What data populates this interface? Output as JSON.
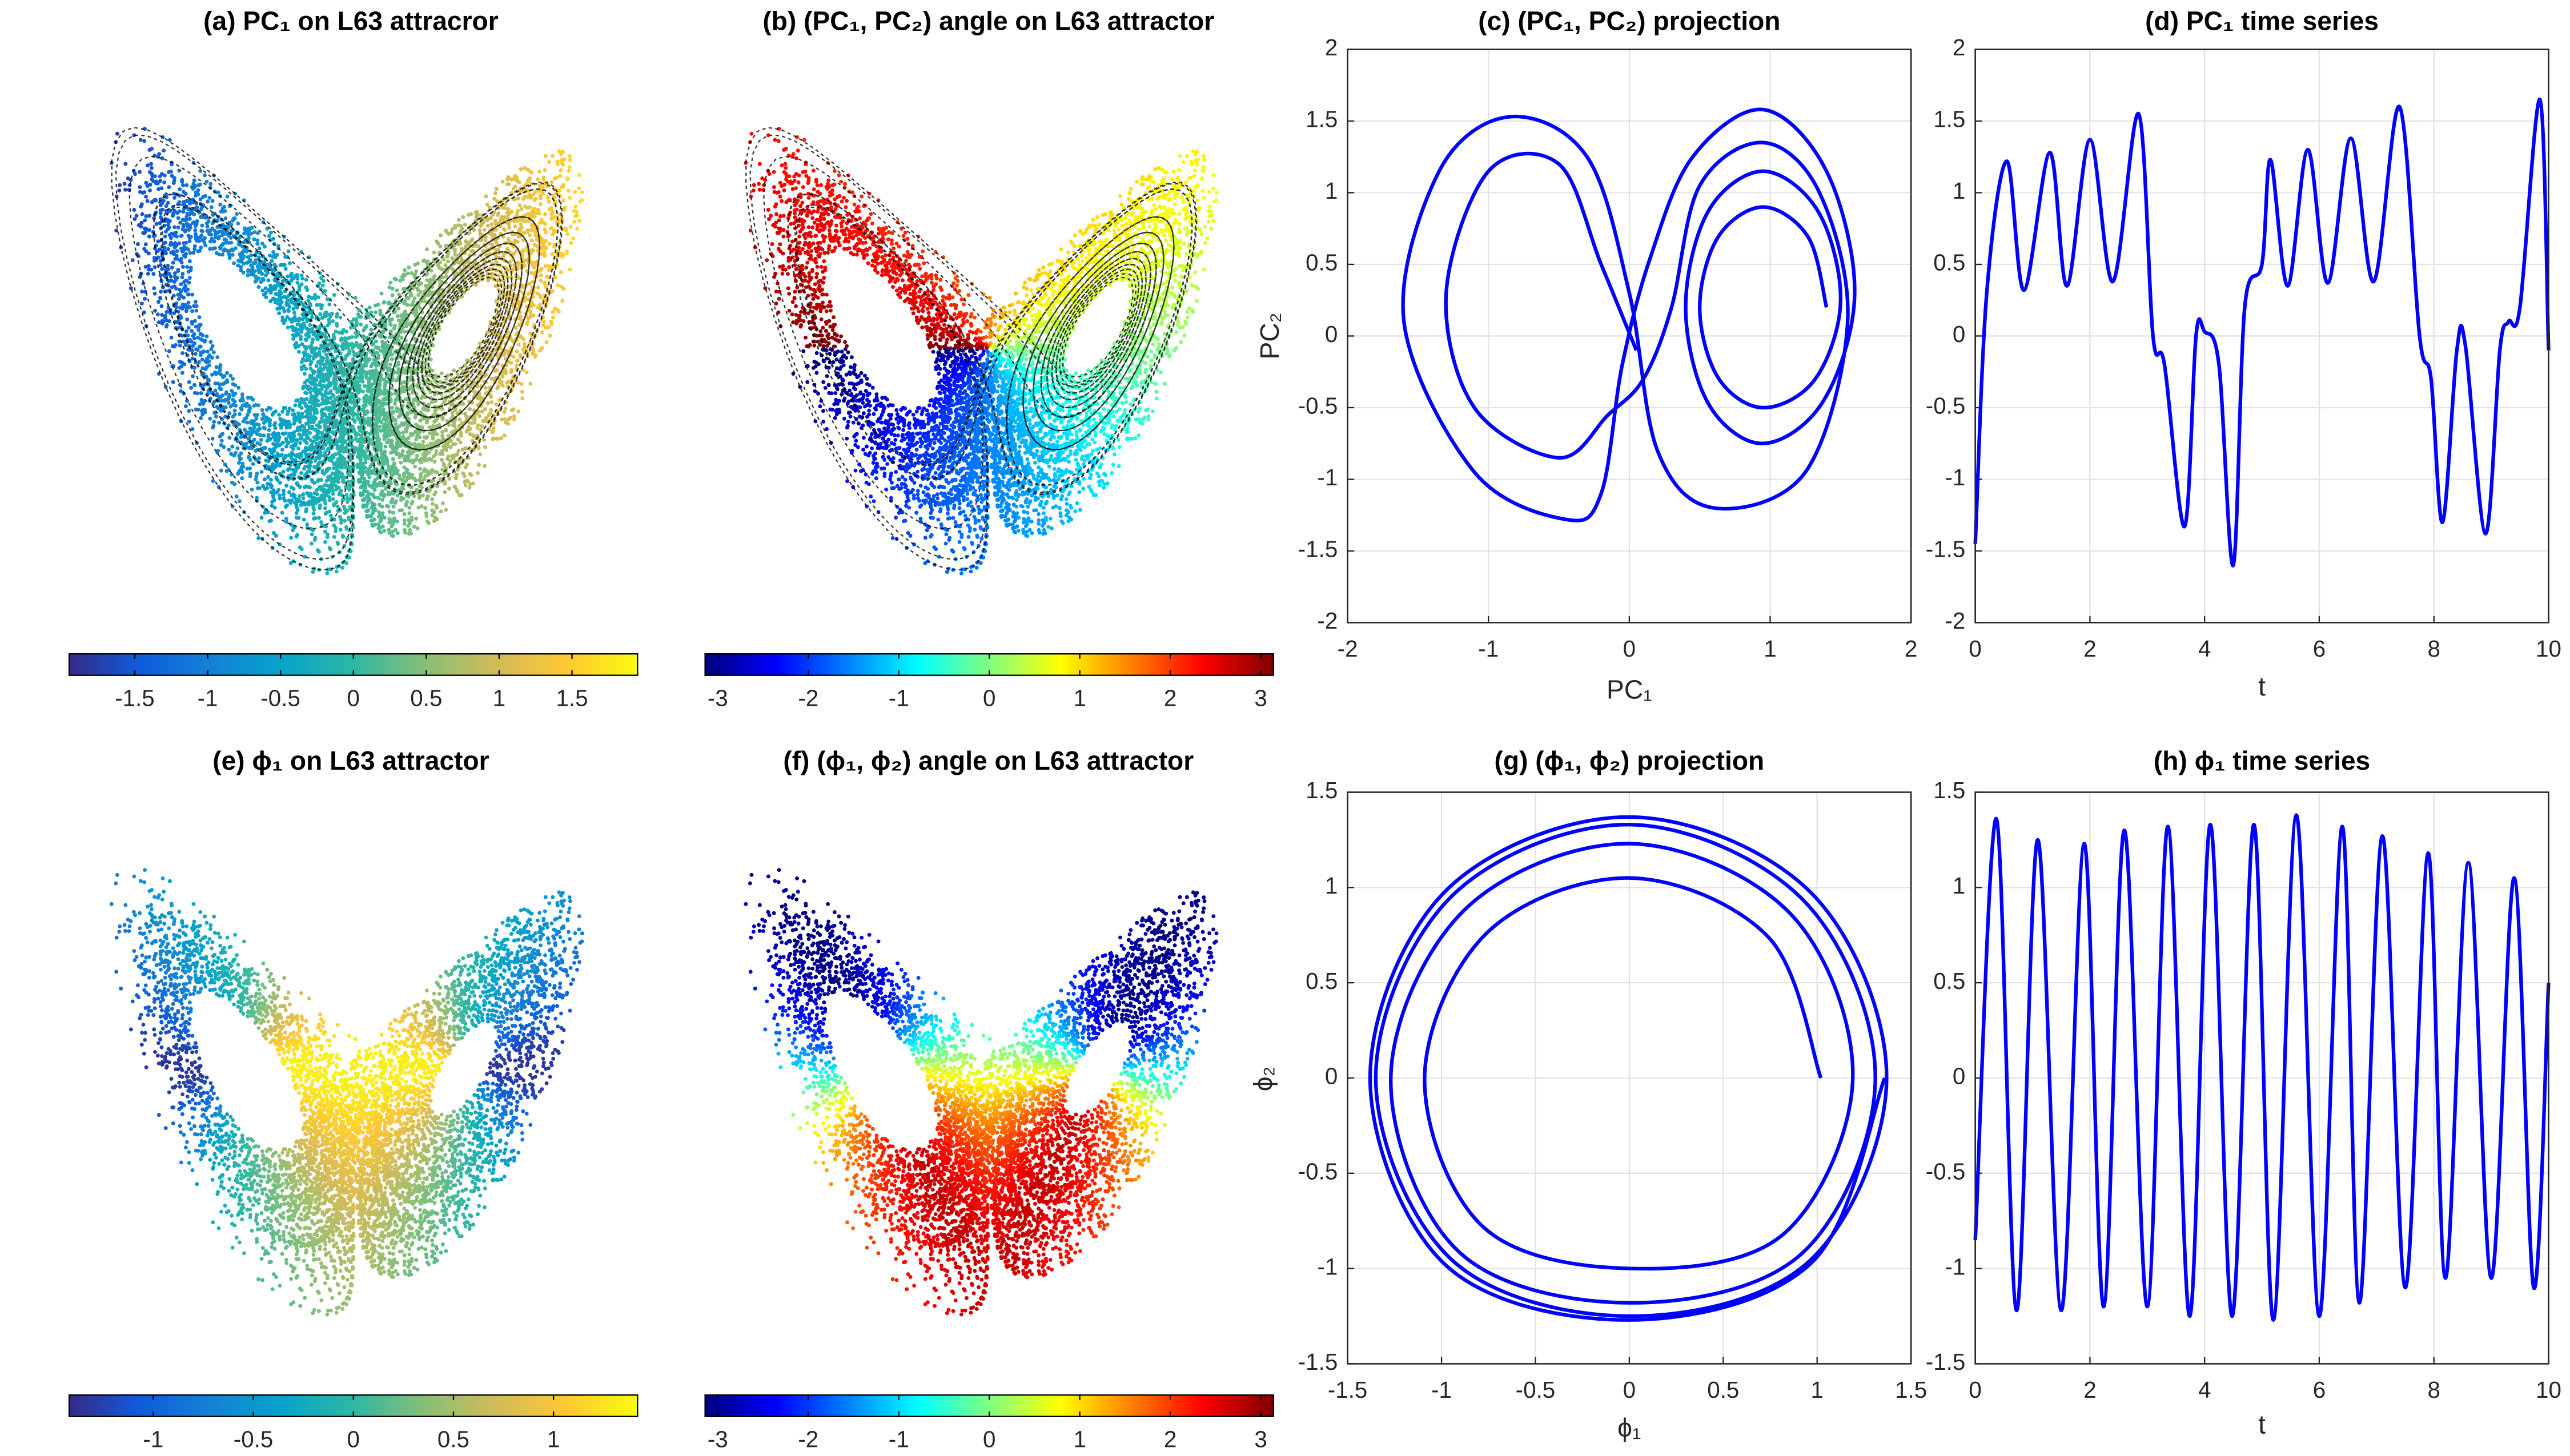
{
  "chart_data": [
    {
      "type": "attractor",
      "title": "(a) PC₁ on L63 attracror",
      "colormap": "parula",
      "clim": [
        -1.95,
        1.95
      ],
      "cticks": [
        -1.5,
        -1,
        -0.5,
        0,
        0.5,
        1,
        1.5
      ]
    },
    {
      "type": "attractor",
      "title": "(b) (PC₁, PC₂) angle on L63 attractor",
      "colormap": "jet",
      "clim": [
        -3.14,
        3.14
      ],
      "cticks": [
        -3,
        -2,
        -1,
        0,
        1,
        2,
        3
      ]
    },
    {
      "type": "line",
      "title": "(c) (PC₁, PC₂) projection",
      "xlabel": "PC₁",
      "ylabel": "PC₂",
      "grid": true,
      "x": [
        1.4,
        1.27,
        0.95,
        0.63,
        0.5,
        0.63,
        0.95,
        1.32,
        1.5,
        1.34,
        0.95,
        0.56,
        0.4,
        0.56,
        0.95,
        1.38,
        1.6,
        1.4,
        0.95,
        0.45,
        0.15,
        -0.05,
        -0.2,
        -0.45,
        -1.1,
        -1.6,
        -1.35,
        -0.85,
        -0.3,
        0.0,
        0.2,
        0.6,
        1.25,
        1.55,
        1.35,
        0.95,
        0.5,
        0.3,
        0.1,
        -0.15,
        -0.5,
        -1.1,
        -1.3,
        -1.0,
        -0.5,
        -0.2,
        0.05
      ],
      "series": [
        {
          "color": "#0000ff",
          "values": [
            0.2,
            0.69,
            0.9,
            0.69,
            0.2,
            -0.29,
            -0.5,
            -0.3,
            0.25,
            0.87,
            1.15,
            0.87,
            0.2,
            -0.47,
            -0.75,
            -0.45,
            0.3,
            1.15,
            1.58,
            1.25,
            0.55,
            -0.2,
            -1.1,
            -1.28,
            -0.95,
            0.1,
            1.15,
            1.53,
            1.25,
            0.3,
            -0.8,
            -1.2,
            -0.95,
            0.1,
            1.0,
            1.35,
            1.05,
            0.2,
            -0.3,
            -0.55,
            -0.85,
            -0.5,
            0.3,
            1.15,
            1.2,
            0.5,
            -0.1
          ]
        }
      ],
      "xlim": [
        -2,
        2
      ],
      "ylim": [
        -2,
        2
      ],
      "xticks": [
        -2,
        -1,
        0,
        1,
        2
      ],
      "yticks": [
        -2,
        -1.5,
        -1,
        -0.5,
        0,
        0.5,
        1,
        1.5,
        2
      ]
    },
    {
      "type": "line",
      "title": "(d) PC₁ time series",
      "xlabel": "t",
      "grid": true,
      "x": [
        0,
        0.2,
        0.55,
        0.85,
        1.3,
        1.6,
        2.0,
        2.4,
        2.85,
        3.1,
        3.3,
        3.65,
        3.85,
        4.0,
        4.25,
        4.5,
        4.7,
        5.0,
        5.15,
        5.45,
        5.8,
        6.15,
        6.55,
        6.95,
        7.4,
        7.75,
        7.95,
        8.15,
        8.4,
        8.55,
        8.9,
        9.15,
        9.3,
        9.5,
        9.85,
        10
      ],
      "series": [
        {
          "color": "#0000ff",
          "values": [
            -1.45,
            0.3,
            1.22,
            0.32,
            1.28,
            0.35,
            1.37,
            0.38,
            1.55,
            0,
            -0.2,
            -1.33,
            0,
            0.03,
            -0.2,
            -1.6,
            0.2,
            0.5,
            1.23,
            0.35,
            1.3,
            0.37,
            1.38,
            0.38,
            1.6,
            0,
            -0.3,
            -1.3,
            -0.1,
            -0.07,
            -1.38,
            -0.1,
            0.1,
            0.2,
            1.65,
            -0.1
          ]
        }
      ],
      "xlim": [
        0,
        10
      ],
      "ylim": [
        -2,
        2
      ],
      "xticks": [
        0,
        2,
        4,
        6,
        8,
        10
      ],
      "yticks": [
        -2,
        -1.5,
        -1,
        -0.5,
        0,
        0.5,
        1,
        1.5,
        2
      ]
    },
    {
      "type": "attractor",
      "title": "(e) ϕ₁ on L63 attractor",
      "colormap": "parula",
      "clim": [
        -1.42,
        1.42
      ],
      "cticks": [
        -1,
        -0.5,
        0,
        0.5,
        1
      ]
    },
    {
      "type": "attractor",
      "title": "(f) (ϕ₁, ϕ₂) angle on L63 attractor",
      "colormap": "jet",
      "clim": [
        -3.14,
        3.14
      ],
      "cticks": [
        -3,
        -2,
        -1,
        0,
        1,
        2,
        3
      ]
    },
    {
      "type": "line",
      "title": "(g) (ϕ₁, ϕ₂) projection",
      "xlabel": "ϕ₁",
      "ylabel": "ϕ₂",
      "grid": true,
      "x": [
        1.02,
        0.74,
        0,
        -0.76,
        -1.09,
        -0.78,
        0,
        0.82,
        1.19,
        0.86,
        0,
        -0.88,
        -1.27,
        -0.91,
        0,
        0.92,
        1.31,
        0.93,
        0,
        -0.95,
        -1.35,
        -0.95,
        0,
        0.96,
        1.37,
        0.97,
        0,
        -0.98,
        -1.38,
        -0.98,
        0,
        0.97,
        1.36
      ],
      "series": [
        {
          "color": "#0000ff",
          "values": [
            0,
            0.74,
            1.05,
            0.76,
            0,
            -0.78,
            -1.0,
            -0.82,
            0,
            0.86,
            1.23,
            0.88,
            0,
            -0.91,
            -1.18,
            -0.92,
            0,
            0.93,
            1.33,
            0.95,
            0,
            -0.95,
            -1.25,
            -0.96,
            0,
            0.97,
            1.37,
            0.98,
            0,
            -0.98,
            -1.27,
            -0.97,
            0
          ]
        }
      ],
      "xlim": [
        -1.5,
        1.5
      ],
      "ylim": [
        -1.5,
        1.5
      ],
      "xticks": [
        -1.5,
        -1,
        -0.5,
        0,
        0.5,
        1,
        1.5
      ],
      "yticks": [
        -1.5,
        -1,
        -0.5,
        0,
        0.5,
        1,
        1.5
      ]
    },
    {
      "type": "line",
      "title": "(h) ϕ₁ time series",
      "xlabel": "t",
      "grid": true,
      "x": [
        0,
        0.37,
        0.72,
        1.09,
        1.5,
        1.9,
        2.24,
        2.6,
        3.0,
        3.36,
        3.74,
        4.1,
        4.48,
        4.86,
        5.2,
        5.6,
        6.0,
        6.4,
        6.7,
        7.1,
        7.5,
        7.9,
        8.2,
        8.6,
        9.0,
        9.4,
        9.74,
        10
      ],
      "series": [
        {
          "color": "#0000ff",
          "values": [
            -0.85,
            1.36,
            -1.22,
            1.25,
            -1.22,
            1.23,
            -1.2,
            1.3,
            -1.2,
            1.32,
            -1.25,
            1.33,
            -1.25,
            1.33,
            -1.27,
            1.38,
            -1.25,
            1.32,
            -1.18,
            1.27,
            -1.1,
            1.18,
            -1.05,
            1.13,
            -1.05,
            1.05,
            -1.1,
            0.5
          ]
        }
      ],
      "xlim": [
        0,
        10
      ],
      "ylim": [
        -1.5,
        1.5
      ],
      "xticks": [
        0,
        2,
        4,
        6,
        8,
        10
      ],
      "yticks": [
        -1.5,
        -1,
        -0.5,
        0,
        0.5,
        1,
        1.5
      ]
    }
  ]
}
